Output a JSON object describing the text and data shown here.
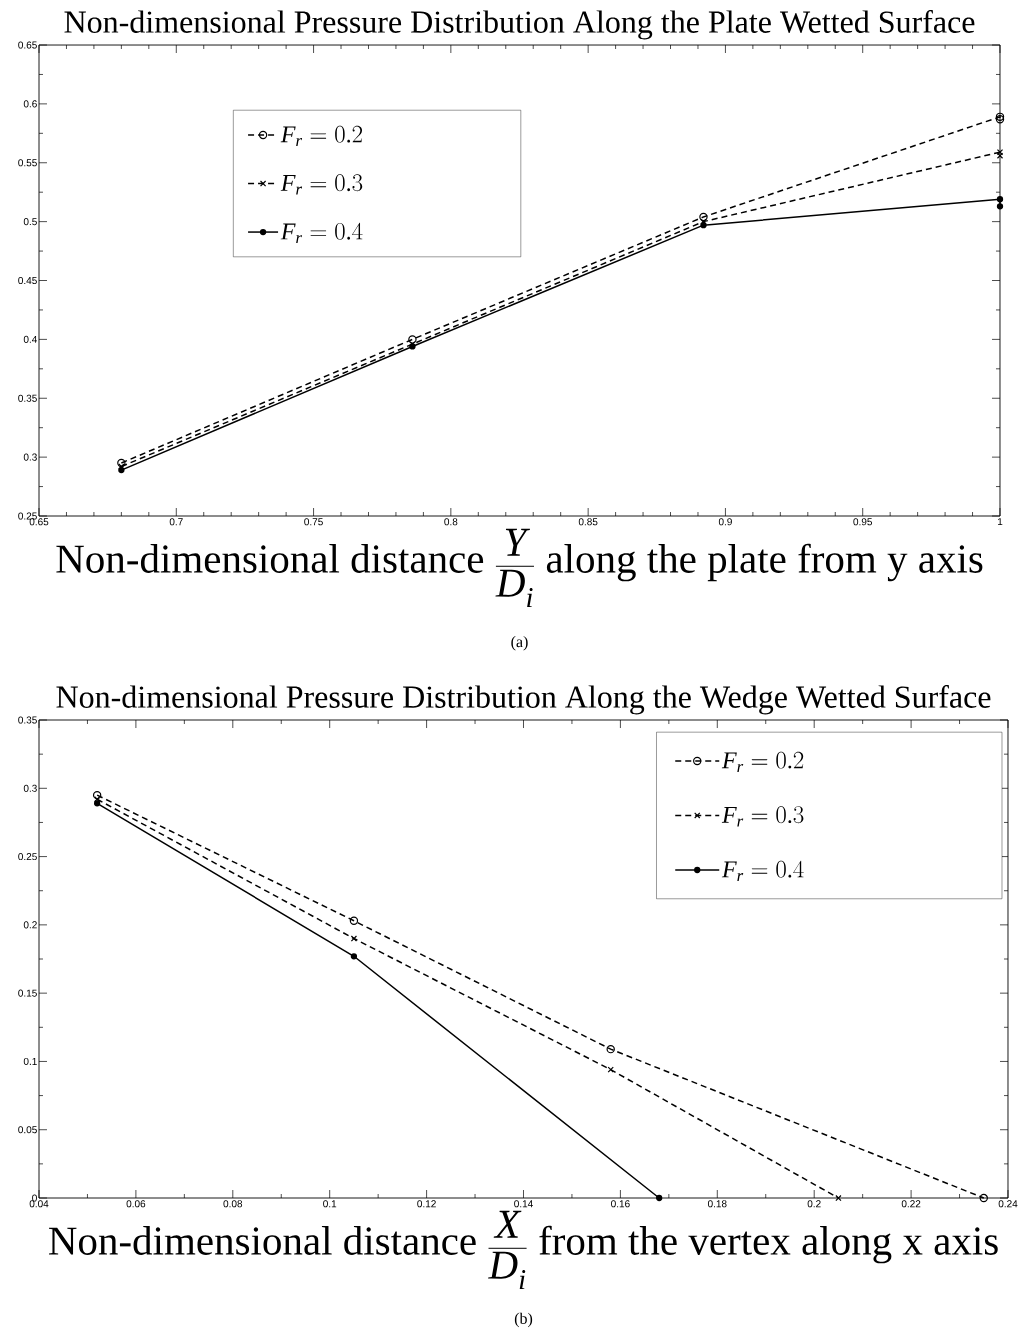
{
  "chart_data": [
    {
      "type": "line",
      "title": "Non-dimensional Pressure Distribution Along the Plate Wetted Surface",
      "xlabel": "\\text{Non-dimensional distance }\\frac{Y}{D_i}\\text{ along the plate from y axis}",
      "annotations": [
        "(a)"
      ],
      "xlim": [
        0.65,
        1
      ],
      "ylim": [
        0.25,
        0.65
      ],
      "xticks": [
        0.65,
        0.7,
        0.75,
        0.8,
        0.85,
        0.9,
        0.95,
        1
      ],
      "yticks": [
        0.25,
        0.3,
        0.35,
        0.4,
        0.45,
        0.5,
        0.55,
        0.6,
        0.65
      ],
      "legend": "top left",
      "series": [
        {
          "name": "F_r = 0.2",
          "color": "#000000",
          "marker": "circle",
          "line_style": "dashed",
          "x": [
            0.68,
            0.786,
            0.892,
            1,
            1
          ],
          "values": [
            0.295,
            0.4,
            0.504,
            0.589,
            0.587
          ]
        },
        {
          "name": "F_r = 0.3",
          "color": "#000000",
          "marker": "cross",
          "line_style": "dashed",
          "x": [
            0.68,
            0.786,
            0.892,
            1,
            1
          ],
          "values": [
            0.292,
            0.396,
            0.5,
            0.559,
            0.556
          ]
        },
        {
          "name": "F_r = 0.4",
          "color": "#000000",
          "marker": "dot",
          "line_style": "solid",
          "x": [
            0.68,
            0.786,
            0.892,
            1,
            1
          ],
          "values": [
            0.289,
            0.394,
            0.497,
            0.519,
            0.513
          ]
        }
      ]
    },
    {
      "type": "line",
      "title": "Non-dimensional Pressure Distribution Along the Wedge Wetted Surface",
      "xlabel": "\\text{Non-dimensional distance }\\frac{X}{D_i}\\text{ from the vertex along x axis}",
      "annotations": [
        "(b)"
      ],
      "xlim": [
        0.04,
        0.24
      ],
      "ylim": [
        0,
        0.35
      ],
      "xticks": [
        0.04,
        0.06,
        0.08,
        0.1,
        0.12,
        0.14,
        0.16,
        0.18,
        0.2,
        0.22,
        0.24
      ],
      "yticks": [
        0,
        0.05,
        0.1,
        0.15,
        0.2,
        0.25,
        0.3,
        0.35
      ],
      "legend": "top right",
      "series": [
        {
          "name": "F_r = 0.2",
          "color": "#000000",
          "marker": "circle",
          "line_style": "dashed",
          "x": [
            0.052,
            0.105,
            0.158,
            0.235
          ],
          "values": [
            0.295,
            0.203,
            0.109,
            0
          ]
        },
        {
          "name": "F_r = 0.3",
          "color": "#000000",
          "marker": "cross",
          "line_style": "dashed",
          "x": [
            0.052,
            0.105,
            0.158,
            0.205
          ],
          "values": [
            0.292,
            0.19,
            0.094,
            0
          ]
        },
        {
          "name": "F_r = 0.4",
          "color": "#000000",
          "marker": "dot",
          "line_style": "solid",
          "x": [
            0.052,
            0.105,
            0.168
          ],
          "values": [
            0.289,
            0.177,
            0
          ]
        }
      ]
    }
  ]
}
